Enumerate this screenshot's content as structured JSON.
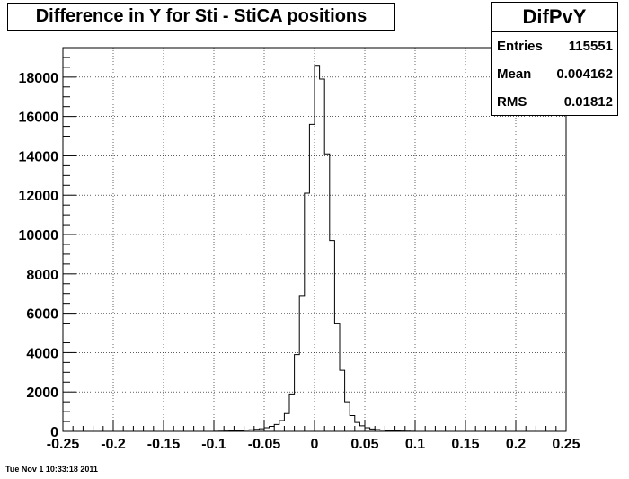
{
  "chart_data": {
    "type": "bar",
    "title": "Difference in Y for Sti - StiCA positions",
    "xlim": [
      -0.25,
      0.25
    ],
    "ylim": [
      0,
      19500
    ],
    "grid": true,
    "x_ticks": [
      -0.25,
      -0.2,
      -0.15,
      -0.1,
      -0.05,
      0,
      0.05,
      0.1,
      0.15,
      0.2,
      0.25
    ],
    "x_tick_labels": [
      "-0.25",
      "-0.2",
      "-0.15",
      "-0.1",
      "-0.05",
      "0",
      "0.05",
      "0.1",
      "0.15",
      "0.2",
      "0.25"
    ],
    "y_ticks": [
      0,
      2000,
      4000,
      6000,
      8000,
      10000,
      12000,
      14000,
      16000,
      18000
    ],
    "y_tick_labels": [
      "0",
      "2000",
      "4000",
      "6000",
      "8000",
      "10000",
      "12000",
      "14000",
      "16000",
      "18000"
    ],
    "bin_width": 0.005,
    "bin_edges_start": -0.1,
    "values": [
      5,
      10,
      15,
      20,
      30,
      40,
      60,
      80,
      100,
      130,
      180,
      250,
      350,
      550,
      900,
      1900,
      3900,
      6900,
      12100,
      15600,
      18600,
      17900,
      14100,
      9700,
      5500,
      3100,
      1500,
      800,
      450,
      280,
      180,
      120,
      90,
      60,
      45,
      30,
      20,
      15,
      10,
      5
    ]
  },
  "stats": {
    "title": "DifPvY",
    "rows": [
      {
        "label": "Entries",
        "value": "115551"
      },
      {
        "label": "Mean",
        "value": "0.004162"
      },
      {
        "label": "RMS",
        "value": "0.01812"
      }
    ]
  },
  "datestamp": "Tue Nov  1 10:33:18 2011"
}
